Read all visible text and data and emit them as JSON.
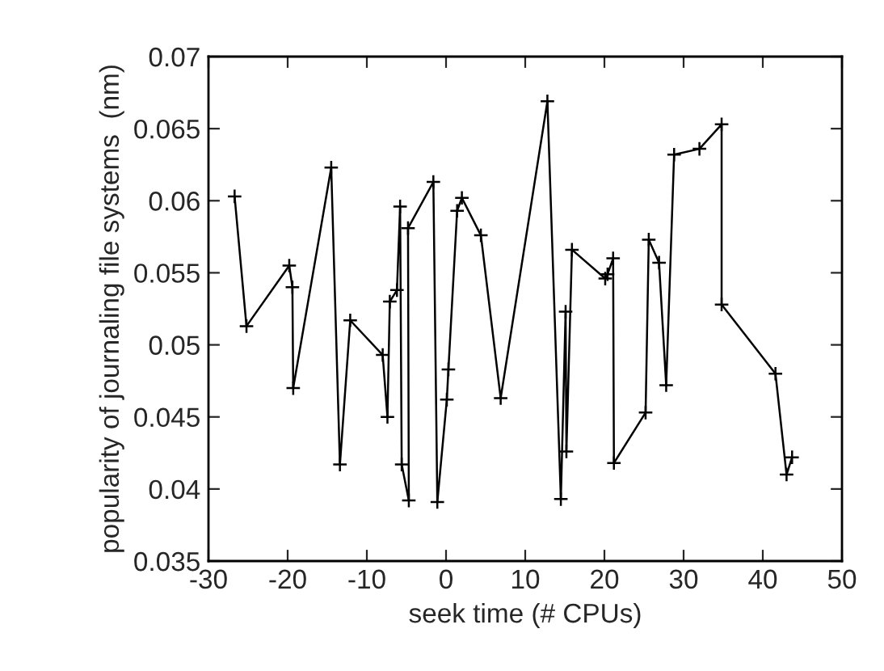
{
  "chart_data": {
    "type": "line",
    "xlabel": "seek time (# CPUs)",
    "ylabel": "popularity of journaling file systems  (nm)",
    "xlim": [
      -30,
      50
    ],
    "xticks": [
      -30,
      -20,
      -10,
      0,
      10,
      20,
      30,
      40,
      50
    ],
    "ylim": [
      0.035,
      0.07
    ],
    "yticks": [
      0.035,
      0.04,
      0.045,
      0.05,
      0.055,
      0.06,
      0.065,
      0.07
    ],
    "grid": false,
    "legend": false,
    "marker": "cross",
    "line_style": "solid",
    "series": [
      {
        "color": "#000000",
        "x": [
          -26.7,
          -25.2,
          -19.8,
          -19.4,
          -19.3,
          -14.5,
          -13.4,
          -12.1,
          -8.0,
          -7.4,
          -7.1,
          -6.2,
          -5.8,
          -5.6,
          -4.7,
          -4.8,
          -1.6,
          -1.1,
          0.1,
          0.3,
          1.4,
          2.0,
          4.4,
          6.9,
          12.8,
          14.5,
          15.1,
          15.2,
          15.9,
          20.1,
          20.4,
          21.1,
          21.2,
          25.2,
          25.6,
          26.9,
          27.8,
          28.8,
          32.0,
          34.8,
          34.8,
          41.6,
          43.0,
          43.7
        ],
        "values": [
          0.0603,
          0.0513,
          0.0555,
          0.054,
          0.047,
          0.0623,
          0.0417,
          0.0517,
          0.0493,
          0.045,
          0.053,
          0.0538,
          0.0596,
          0.0417,
          0.0392,
          0.0581,
          0.0613,
          0.0391,
          0.0462,
          0.0483,
          0.0593,
          0.0602,
          0.0576,
          0.0463,
          0.0669,
          0.0393,
          0.0523,
          0.0426,
          0.0566,
          0.0546,
          0.0549,
          0.056,
          0.0418,
          0.0453,
          0.0573,
          0.0557,
          0.0472,
          0.0632,
          0.0636,
          0.0653,
          0.0528,
          0.048,
          0.041,
          0.0422
        ]
      }
    ]
  }
}
